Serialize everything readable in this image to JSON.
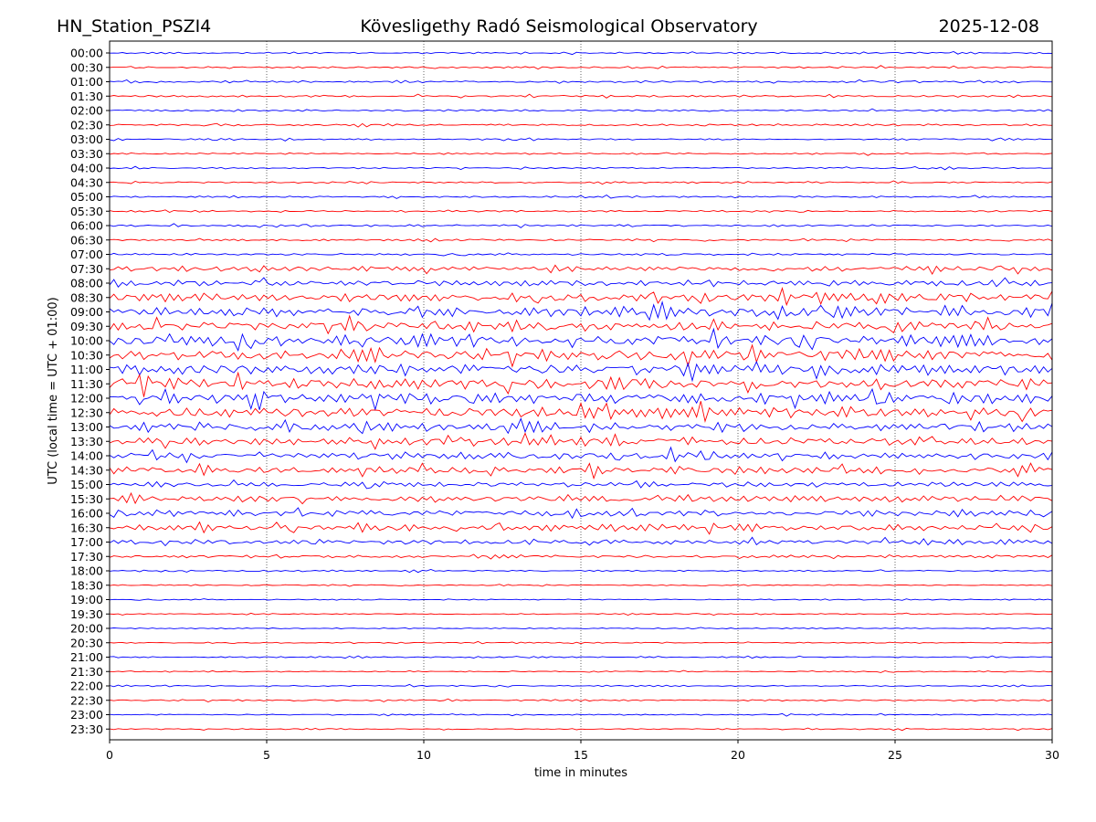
{
  "header": {
    "station": "HN_Station_PSZI4",
    "observatory": "Kövesligethy Radó Seismological Observatory",
    "date": "2025-12-08"
  },
  "chart_data": {
    "type": "line",
    "title": "Kövesligethy Radó Seismological Observatory",
    "xlabel": "time in minutes",
    "ylabel": "UTC (local time = UTC + 01:00)",
    "xlim": [
      0,
      30
    ],
    "x_ticks": [
      "0",
      "5",
      "10",
      "15",
      "20",
      "25",
      "30"
    ],
    "grid": "vertical dotted at x ticks",
    "colors": [
      "#0000ff",
      "#ff0000"
    ],
    "rows": [
      {
        "label": "00:00",
        "amp": 0.3
      },
      {
        "label": "00:30",
        "amp": 0.32
      },
      {
        "label": "01:00",
        "amp": 0.35
      },
      {
        "label": "01:30",
        "amp": 0.35
      },
      {
        "label": "02:00",
        "amp": 0.3
      },
      {
        "label": "02:30",
        "amp": 0.35
      },
      {
        "label": "03:00",
        "amp": 0.28
      },
      {
        "label": "03:30",
        "amp": 0.28
      },
      {
        "label": "04:00",
        "amp": 0.28
      },
      {
        "label": "04:30",
        "amp": 0.28
      },
      {
        "label": "05:00",
        "amp": 0.3
      },
      {
        "label": "05:30",
        "amp": 0.3
      },
      {
        "label": "06:00",
        "amp": 0.35
      },
      {
        "label": "06:30",
        "amp": 0.33
      },
      {
        "label": "07:00",
        "amp": 0.4
      },
      {
        "label": "07:30",
        "amp": 0.9
      },
      {
        "label": "08:00",
        "amp": 1.1
      },
      {
        "label": "08:30",
        "amp": 1.5
      },
      {
        "label": "09:00",
        "amp": 1.7
      },
      {
        "label": "09:30",
        "amp": 1.8
      },
      {
        "label": "10:00",
        "amp": 2.0
      },
      {
        "label": "10:30",
        "amp": 2.0
      },
      {
        "label": "11:00",
        "amp": 2.0
      },
      {
        "label": "11:30",
        "amp": 2.0
      },
      {
        "label": "12:00",
        "amp": 1.9
      },
      {
        "label": "12:30",
        "amp": 1.9
      },
      {
        "label": "13:00",
        "amp": 1.6
      },
      {
        "label": "13:30",
        "amp": 1.4
      },
      {
        "label": "14:00",
        "amp": 1.3
      },
      {
        "label": "14:30",
        "amp": 1.2
      },
      {
        "label": "15:00",
        "amp": 0.9
      },
      {
        "label": "15:30",
        "amp": 1.1
      },
      {
        "label": "16:00",
        "amp": 1.2
      },
      {
        "label": "16:30",
        "amp": 1.2
      },
      {
        "label": "17:00",
        "amp": 0.9
      },
      {
        "label": "17:30",
        "amp": 0.5
      },
      {
        "label": "18:00",
        "amp": 0.25
      },
      {
        "label": "18:30",
        "amp": 0.22
      },
      {
        "label": "19:00",
        "amp": 0.22
      },
      {
        "label": "19:30",
        "amp": 0.2
      },
      {
        "label": "20:00",
        "amp": 0.2
      },
      {
        "label": "20:30",
        "amp": 0.2
      },
      {
        "label": "21:00",
        "amp": 0.22
      },
      {
        "label": "21:30",
        "amp": 0.22
      },
      {
        "label": "22:00",
        "amp": 0.25
      },
      {
        "label": "22:30",
        "amp": 0.28
      },
      {
        "label": "23:00",
        "amp": 0.22
      },
      {
        "label": "23:30",
        "amp": 0.22
      }
    ]
  }
}
